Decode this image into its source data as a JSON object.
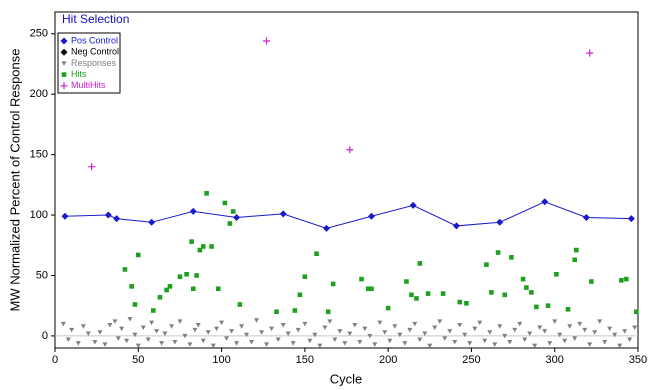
{
  "chart_data": {
    "type": "scatter",
    "title": "Hit Selection",
    "x_label": "Cycle",
    "y_label": "MW Normalized Percent of Control Response",
    "xlim": [
      0,
      350
    ],
    "ylim": [
      -10,
      268
    ],
    "xticks": [
      0,
      50,
      100,
      150,
      200,
      250,
      300,
      350
    ],
    "yticks": [
      0,
      50,
      100,
      150,
      200,
      250
    ],
    "zero_line": true,
    "legend": "upper left",
    "series": [
      {
        "name": "Pos Control",
        "color": "#1a1acc",
        "marker": "diamond",
        "line": true,
        "x": [
          6,
          32,
          37,
          58,
          83,
          109,
          137,
          163,
          190,
          215,
          241,
          267,
          294,
          319,
          346
        ],
        "y": [
          99,
          100,
          97,
          94,
          103,
          98,
          101,
          89,
          99,
          108,
          91,
          94,
          111,
          98,
          97
        ]
      },
      {
        "name": "Neg Control",
        "color": "#000000",
        "marker": "diamond",
        "x": [],
        "y": []
      },
      {
        "name": "Responses",
        "color": "#808080",
        "marker": "triangle",
        "x": [
          5,
          8,
          10,
          14,
          17,
          20,
          24,
          27,
          30,
          33,
          36,
          38,
          40,
          43,
          45,
          48,
          50,
          53,
          56,
          58,
          61,
          64,
          66,
          70,
          72,
          75,
          78,
          81,
          84,
          86,
          89,
          92,
          95,
          97,
          100,
          103,
          106,
          109,
          112,
          115,
          118,
          121,
          124,
          127,
          130,
          134,
          137,
          140,
          143,
          146,
          150,
          153,
          156,
          159,
          162,
          165,
          168,
          171,
          174,
          177,
          180,
          183,
          186,
          189,
          192,
          195,
          198,
          201,
          204,
          207,
          210,
          213,
          216,
          219,
          222,
          225,
          228,
          231,
          234,
          237,
          240,
          243,
          246,
          249,
          252,
          255,
          258,
          261,
          264,
          267,
          270,
          273,
          276,
          279,
          282,
          285,
          288,
          291,
          294,
          297,
          300,
          303,
          306,
          309,
          312,
          315,
          318,
          321,
          324,
          327,
          330,
          333,
          336,
          339,
          342,
          345,
          348
        ],
        "y": [
          10,
          -3,
          5,
          -6,
          8,
          2,
          -5,
          3,
          -7,
          9,
          12,
          -2,
          6,
          -4,
          14,
          1,
          -8,
          7,
          -3,
          11,
          4,
          -6,
          2,
          8,
          -5,
          12,
          0,
          -7,
          5,
          9,
          -4,
          3,
          -8,
          6,
          11,
          -2,
          4,
          -6,
          8,
          1,
          -5,
          13,
          3,
          -7,
          6,
          -3,
          9,
          2,
          -6,
          5,
          10,
          -4,
          1,
          -8,
          7,
          12,
          -3,
          4,
          -6,
          2,
          9,
          -5,
          6,
          0,
          -7,
          11,
          3,
          -4,
          8,
          1,
          -6,
          5,
          10,
          -3,
          2,
          -8,
          7,
          12,
          -2,
          4,
          -5,
          9,
          1,
          -6,
          6,
          11,
          -4,
          3,
          -7,
          8,
          0,
          -5,
          5,
          10,
          -3,
          2,
          -8,
          7,
          4,
          -6,
          12,
          1,
          -4,
          8,
          -2,
          10,
          5,
          -7,
          3,
          12,
          -5,
          6,
          1,
          -8,
          4,
          -3,
          7
        ]
      },
      {
        "name": "Hits",
        "color": "#1ea01e",
        "marker": "square",
        "x": [
          42,
          46,
          50,
          48,
          59,
          63,
          67,
          69,
          75,
          79,
          82,
          83,
          85,
          87,
          89,
          91,
          94,
          98,
          102,
          105,
          107,
          111,
          133,
          144,
          147,
          150,
          157,
          164,
          167,
          184,
          188,
          190,
          200,
          211,
          214,
          217,
          219,
          224,
          233,
          243,
          247,
          259,
          262,
          266,
          270,
          274,
          281,
          283,
          286,
          289,
          296,
          301,
          308,
          312,
          313,
          322,
          340,
          343,
          349
        ],
        "y": [
          55,
          41,
          67,
          26,
          21,
          32,
          38,
          41,
          49,
          51,
          78,
          39,
          50,
          71,
          74,
          118,
          74,
          39,
          110,
          93,
          103,
          26,
          20,
          21,
          34,
          49,
          68,
          20,
          43,
          47,
          39,
          39,
          23,
          45,
          34,
          31,
          60,
          35,
          35,
          28,
          27,
          59,
          36,
          69,
          34,
          65,
          47,
          40,
          36,
          24,
          25,
          51,
          22,
          63,
          71,
          45,
          46,
          47,
          20
        ]
      },
      {
        "name": "MultiHits",
        "color": "#d020d0",
        "marker": "plus",
        "x": [
          22,
          127,
          177,
          321
        ],
        "y": [
          140,
          244,
          154,
          234
        ]
      }
    ]
  }
}
